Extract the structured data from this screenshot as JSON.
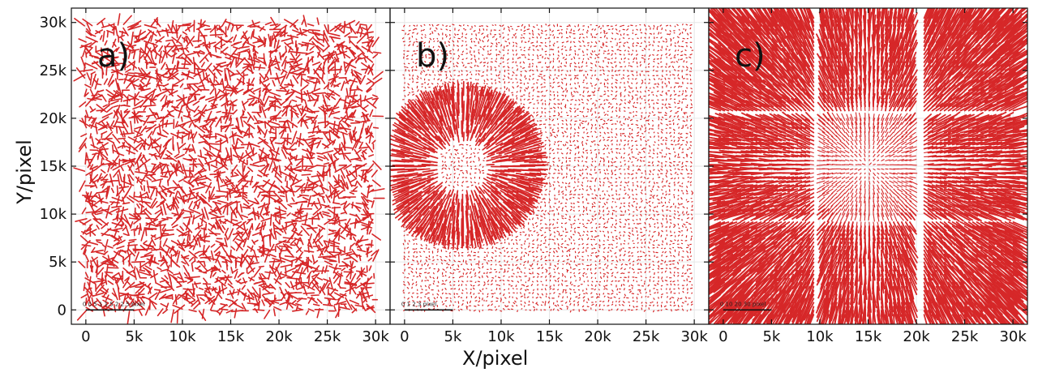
{
  "chart_data": {
    "type": "quiver",
    "xlabel": "X/pixel",
    "ylabel": "Y/pixel",
    "xlim": [
      -1500,
      31500
    ],
    "ylim": [
      -1500,
      31500
    ],
    "x_ticks": [
      0,
      5000,
      10000,
      15000,
      20000,
      25000,
      30000
    ],
    "x_tick_labels": [
      "0",
      "5k",
      "10k",
      "15k",
      "20k",
      "25k",
      "30k"
    ],
    "y_ticks": [
      0,
      5000,
      10000,
      15000,
      20000,
      25000,
      30000
    ],
    "y_tick_labels": [
      "0",
      "5k",
      "10k",
      "15k",
      "20k",
      "25k",
      "30k"
    ],
    "color": "#d62728",
    "panels": [
      {
        "label": "a)",
        "description": "random residual field",
        "scale_bar_text": "0 0.5 1 1.5 2 2.5 pixel"
      },
      {
        "label": "b)",
        "description": "localized radial distortion centered near (6000, 15000)",
        "center": [
          6000,
          15000
        ],
        "radius": [
          2500,
          8000
        ],
        "scale_bar_text": "0 1 2 3 pixel"
      },
      {
        "label": "c)",
        "description": "3x3 detector mosaic with radial distortion from center (15000, 15000)",
        "center": [
          15000,
          15000
        ],
        "chip_x": [
          [
            -300,
            9500
          ],
          [
            10500,
            19700
          ],
          [
            20800,
            30200
          ]
        ],
        "chip_y": [
          [
            -500,
            9200
          ],
          [
            10100,
            19800
          ],
          [
            20800,
            30700
          ]
        ],
        "scale_bar_text": "0 10 20 30 pixel"
      }
    ]
  }
}
